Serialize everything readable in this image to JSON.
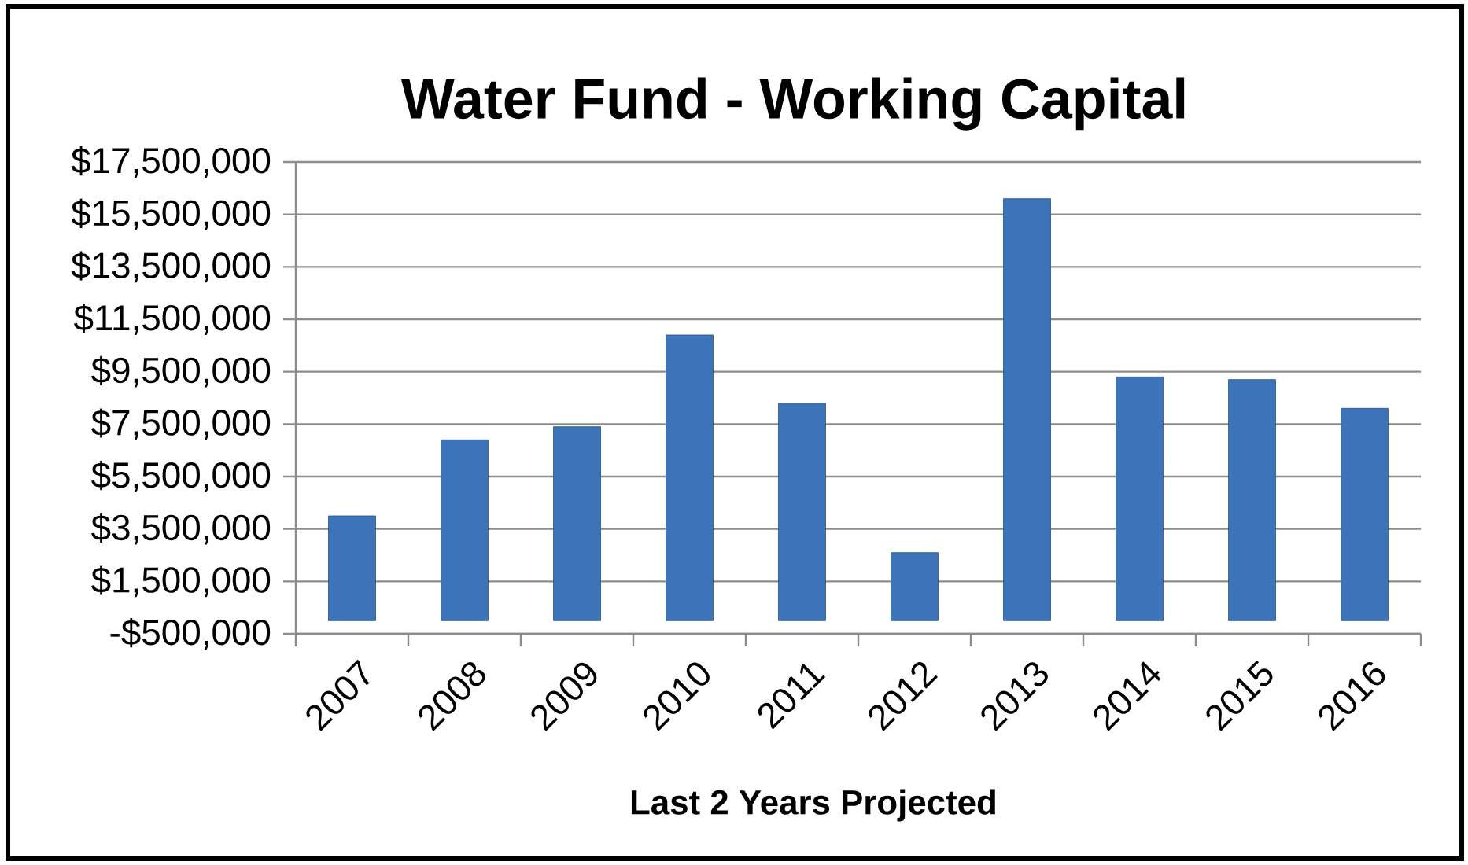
{
  "chart_data": {
    "type": "bar",
    "title": "Water Fund - Working Capital",
    "xlabel": "Last 2 Years Projected",
    "categories": [
      "2007",
      "2008",
      "2009",
      "2010",
      "2011",
      "2012",
      "2013",
      "2014",
      "2015",
      "2016"
    ],
    "values": [
      4000000,
      6900000,
      7400000,
      10900000,
      8300000,
      2600000,
      16100000,
      9300000,
      9200000,
      8100000
    ],
    "color": "#3c73b9",
    "ylim": [
      -500000,
      17500000
    ],
    "yticks": [
      {
        "value": -500000,
        "label": "-$500,000"
      },
      {
        "value": 1500000,
        "label": "$1,500,000"
      },
      {
        "value": 3500000,
        "label": "$3,500,000"
      },
      {
        "value": 5500000,
        "label": "$5,500,000"
      },
      {
        "value": 7500000,
        "label": "$7,500,000"
      },
      {
        "value": 9500000,
        "label": "$9,500,000"
      },
      {
        "value": 11500000,
        "label": "$11,500,000"
      },
      {
        "value": 13500000,
        "label": "$13,500,000"
      },
      {
        "value": 15500000,
        "label": "$15,500,000"
      },
      {
        "value": 17500000,
        "label": "$17,500,000"
      }
    ],
    "grid": "y"
  }
}
